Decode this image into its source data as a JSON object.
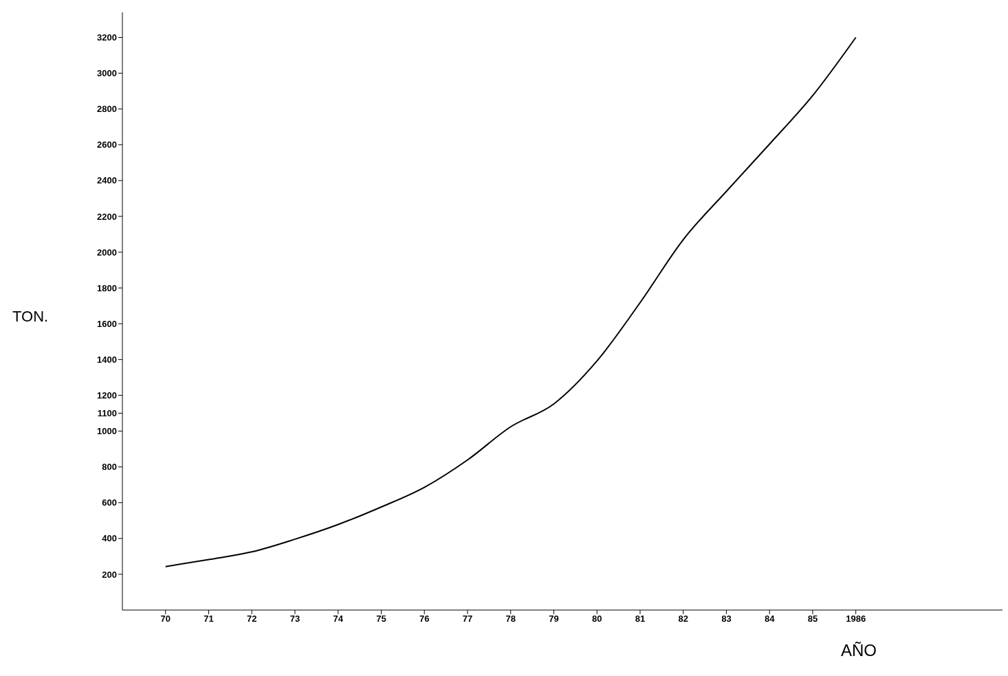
{
  "chart_data": {
    "type": "line",
    "xlabel": "AÑO",
    "ylabel": "TON.",
    "x": [
      1970,
      1971,
      1972,
      1973,
      1974,
      1975,
      1976,
      1977,
      1978,
      1979,
      1980,
      1981,
      1982,
      1983,
      1984,
      1985,
      1986
    ],
    "series": [
      {
        "color": "#000000",
        "values": [
          243,
          282,
          325,
          396,
          478,
          576,
          686,
          839,
          1024,
          1152,
          1392,
          1718,
          2070,
          2340,
          2604,
          2875,
          3200
        ]
      }
    ],
    "xlim": [
      1969,
      1989.4
    ],
    "xticks": [
      {
        "value": 1970,
        "label": "70"
      },
      {
        "value": 1971,
        "label": "71"
      },
      {
        "value": 1972,
        "label": "72"
      },
      {
        "value": 1973,
        "label": "73"
      },
      {
        "value": 1974,
        "label": "74"
      },
      {
        "value": 1975,
        "label": "75"
      },
      {
        "value": 1976,
        "label": "76"
      },
      {
        "value": 1977,
        "label": "77"
      },
      {
        "value": 1978,
        "label": "78"
      },
      {
        "value": 1979,
        "label": "79"
      },
      {
        "value": 1980,
        "label": "80"
      },
      {
        "value": 1981,
        "label": "81"
      },
      {
        "value": 1982,
        "label": "82"
      },
      {
        "value": 1983,
        "label": "83"
      },
      {
        "value": 1984,
        "label": "84"
      },
      {
        "value": 1985,
        "label": "85"
      },
      1986
    ],
    "ylim": [
      0,
      3340
    ],
    "yticks": [
      200,
      400,
      600,
      800,
      1000,
      1100,
      1200,
      1400,
      1600,
      1800,
      2000,
      2200,
      2400,
      2600,
      2800,
      3000,
      3200
    ],
    "grid": false,
    "legend": false,
    "marker": "none",
    "line_style": "solid"
  }
}
